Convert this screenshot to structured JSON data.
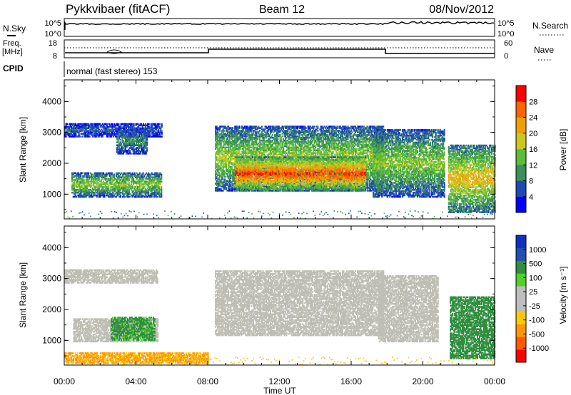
{
  "header": {
    "station": "Pykkvibaer (fitACF)",
    "beam": "Beam 12",
    "date": "08/Nov/2012"
  },
  "noise_panel": {
    "left_label": "N.Sky",
    "right_label": "N.Search",
    "left_ticks": [
      "10^5",
      "10^0"
    ],
    "right_ticks": [
      "10^5",
      "10^0"
    ]
  },
  "freq_panel": {
    "left_label_1": "Freq.",
    "left_label_2": "[MHz]",
    "right_label": "Nave",
    "left_ticks": [
      "18",
      "8"
    ],
    "right_ticks": [
      "60",
      "0"
    ]
  },
  "cpid": {
    "label": "CPID",
    "text": "normal (fast stereo) 153"
  },
  "colors": {
    "power_scale": [
      "#0000ff",
      "#1f4ab4",
      "#3a8f5a",
      "#5bbd3a",
      "#c8c821",
      "#f0a000",
      "#ff6400",
      "#ff0000"
    ],
    "velocity_scale": [
      "#ff0000",
      "#ff5a00",
      "#ff9600",
      "#ffc800",
      "#bebebe",
      "#bebebe",
      "#50d028",
      "#2f8f3f",
      "#2050b0",
      "#1030c0"
    ],
    "ground_scatter": "#bebeb4"
  },
  "chart_data": [
    {
      "type": "heatmap",
      "title": "",
      "xlabel": "Time UT",
      "ylabel": "Slant Range [km]",
      "xlim": [
        "00:00",
        "24:00"
      ],
      "ylim": [
        200,
        4700
      ],
      "xticks": [
        "00:00",
        "04:00",
        "08:00",
        "12:00",
        "16:00",
        "20:00",
        "00:00"
      ],
      "yticks": [
        "1000",
        "2000",
        "3000",
        "4000"
      ],
      "colorbar": {
        "label": "Power [dB]",
        "range": [
          0,
          32
        ],
        "ticks": [
          "4",
          "8",
          "12",
          "16",
          "20",
          "24",
          "28"
        ]
      },
      "regions": [
        {
          "t_start": 0.0,
          "t_end": 5.4,
          "r_start": 2850,
          "r_end": 3300,
          "value": 7
        },
        {
          "t_start": 0.4,
          "t_end": 5.4,
          "r_start": 900,
          "r_end": 1700,
          "value": 15
        },
        {
          "t_start": 2.9,
          "t_end": 4.6,
          "r_start": 2300,
          "r_end": 3150,
          "value": 10
        },
        {
          "t_start": 8.4,
          "t_end": 17.8,
          "r_start": 1100,
          "r_end": 3200,
          "value": 16
        },
        {
          "t_start": 9.5,
          "t_end": 16.8,
          "r_start": 1100,
          "r_end": 2200,
          "value": 27
        },
        {
          "t_start": 17.2,
          "t_end": 21.2,
          "r_start": 900,
          "r_end": 3100,
          "value": 15
        },
        {
          "t_start": 21.4,
          "t_end": 24.0,
          "r_start": 400,
          "r_end": 2600,
          "value": 20
        }
      ]
    },
    {
      "type": "heatmap",
      "title": "",
      "xlabel": "Time UT",
      "ylabel": "Slant Range [km]",
      "xlim": [
        "00:00",
        "24:00"
      ],
      "ylim": [
        200,
        4700
      ],
      "xticks": [
        "00:00",
        "04:00",
        "08:00",
        "12:00",
        "16:00",
        "20:00",
        "00:00"
      ],
      "yticks": [
        "1000",
        "2000",
        "3000",
        "4000"
      ],
      "colorbar": {
        "label": "Velocity [m s⁻¹]",
        "range": [
          -1200,
          1200
        ],
        "ticks": [
          "1000",
          "500",
          "100",
          "25",
          "-25",
          "-100",
          "-500",
          "-1000"
        ]
      },
      "regions": [
        {
          "t_start": 0.0,
          "t_end": 5.2,
          "r_start": 2850,
          "r_end": 3300,
          "value": 0,
          "ground_scatter": true
        },
        {
          "t_start": 0.5,
          "t_end": 5.2,
          "r_start": 950,
          "r_end": 1700,
          "value": 0,
          "ground_scatter": true
        },
        {
          "t_start": 2.6,
          "t_end": 5.0,
          "r_start": 1000,
          "r_end": 1750,
          "value": 150
        },
        {
          "t_start": 8.4,
          "t_end": 17.8,
          "r_start": 1150,
          "r_end": 3250,
          "value": 0,
          "ground_scatter": true
        },
        {
          "t_start": 17.5,
          "t_end": 20.8,
          "r_start": 950,
          "r_end": 3100,
          "value": 0,
          "ground_scatter": true
        },
        {
          "t_start": 21.5,
          "t_end": 24.0,
          "r_start": 400,
          "r_end": 2400,
          "value": 300
        },
        {
          "t_start": 0.0,
          "t_end": 8.0,
          "r_start": 250,
          "r_end": 600,
          "value": -120
        }
      ]
    }
  ]
}
